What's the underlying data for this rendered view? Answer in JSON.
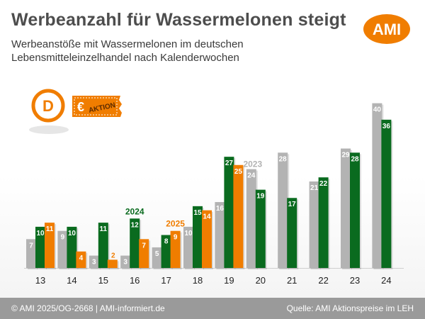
{
  "header": {
    "title": "Werbeanzahl für Wassermelonen steigt",
    "subtitle": "Werbeanstöße mit Wassermelonen im deutschen Lebensmitteleinzelhandel nach Kalenderwochen",
    "logo_text": "AMI",
    "badge_currency": "€",
    "badge_letter": "D",
    "badge_label": "AKTION"
  },
  "footer": {
    "copyright": "© AMI 2025/OG-2668 | AMI-informiert.de",
    "source": "Quelle: AMI Aktionspreise im LEH"
  },
  "colors": {
    "y2023": "#b3b3b3",
    "y2024": "#0a6b1f",
    "y2025": "#f07d00",
    "brand": "#f07d00"
  },
  "chart_data": {
    "type": "bar",
    "title": "Werbeanzahl für Wassermelonen steigt",
    "subtitle": "Werbeanstöße mit Wassermelonen im deutschen Lebensmitteleinzelhandel nach Kalenderwochen",
    "categories": [
      "13",
      "14",
      "15",
      "16",
      "17",
      "18",
      "19",
      "20",
      "21",
      "22",
      "23",
      "24"
    ],
    "series": [
      {
        "name": "2023",
        "values": [
          7,
          9,
          3,
          3,
          5,
          10,
          16,
          24,
          28,
          21,
          29,
          40
        ]
      },
      {
        "name": "2024",
        "values": [
          10,
          10,
          11,
          12,
          8,
          15,
          27,
          19,
          17,
          22,
          28,
          36
        ]
      },
      {
        "name": "2025",
        "values": [
          11,
          4,
          2,
          7,
          9,
          14,
          25,
          null,
          null,
          null,
          null,
          null
        ]
      }
    ],
    "xlabel": "",
    "ylabel": "",
    "ylim": [
      0,
      42
    ],
    "grid": false,
    "legend": "inline labels above bars (2024 at week 16, 2025 at week 17, 2023 at week 20)"
  }
}
